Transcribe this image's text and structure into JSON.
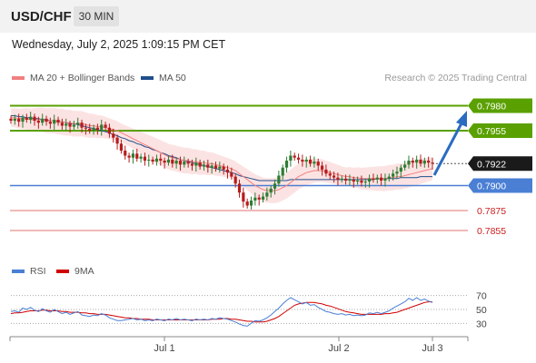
{
  "header": {
    "symbol": "USD/CHF",
    "timeframe": "30 MIN"
  },
  "datetime": "Wednesday, July 2, 2025 1:09:15 PM CET",
  "legend": {
    "ma20_label": "MA 20 + Bollinger Bands",
    "ma20_color": "#f08080",
    "ma50_label": "MA 50",
    "ma50_color": "#1f4e8c"
  },
  "copyright": "Research © 2025 Trading Central",
  "rsi_legend": {
    "rsi_label": "RSI",
    "rsi_color": "#4a7fd4",
    "ma_label": "9MA",
    "ma_color": "#d00000"
  },
  "price_levels": [
    {
      "price": "0.7980",
      "style": "green-box"
    },
    {
      "price": "0.7955",
      "style": "green-box"
    },
    {
      "price": "0.7922",
      "style": "black-box"
    },
    {
      "price": "0.7900",
      "style": "blue-box"
    },
    {
      "price": "0.7875",
      "style": "red-text"
    },
    {
      "price": "0.7855",
      "style": "red-text"
    }
  ],
  "rsi_levels": [
    "70",
    "50",
    "30"
  ],
  "x_axis_labels": [
    "Jul 1",
    "Jul 2",
    "Jul 3"
  ],
  "colors": {
    "green_line": "#5aa000",
    "blue_line": "#4a7fd4",
    "red_line": "#e07070",
    "arrow": "#2a6cc0",
    "candle_up": "#2e7d32",
    "candle_down": "#b71c1c"
  },
  "chart_data": {
    "type": "candlestick",
    "price_ylim": [
      0.7845,
      0.7995
    ],
    "rsi_ylim": [
      20,
      80
    ],
    "close": [
      0.7965,
      0.7967,
      0.7964,
      0.7968,
      0.7966,
      0.7969,
      0.7965,
      0.7963,
      0.7967,
      0.7964,
      0.7962,
      0.7966,
      0.7963,
      0.796,
      0.7962,
      0.7959,
      0.7961,
      0.7963,
      0.7958,
      0.7957,
      0.7955,
      0.7958,
      0.7956,
      0.7961,
      0.7958,
      0.7952,
      0.7948,
      0.7942,
      0.7935,
      0.793,
      0.7928,
      0.7932,
      0.7927,
      0.7929,
      0.7925,
      0.7926,
      0.7924,
      0.7927,
      0.7925,
      0.7923,
      0.7926,
      0.7922,
      0.7925,
      0.7921,
      0.7924,
      0.7922,
      0.792,
      0.7923,
      0.7919,
      0.7921,
      0.7918,
      0.792,
      0.7917,
      0.7919,
      0.7916,
      0.7913,
      0.7909,
      0.7902,
      0.7893,
      0.7884,
      0.788,
      0.7885,
      0.7888,
      0.7886,
      0.7889,
      0.7893,
      0.7897,
      0.7902,
      0.791,
      0.7918,
      0.7925,
      0.793,
      0.7928,
      0.7926,
      0.7924,
      0.7926,
      0.7922,
      0.7924,
      0.792,
      0.7916,
      0.7912,
      0.791,
      0.7908,
      0.7906,
      0.7907,
      0.7905,
      0.7906,
      0.7904,
      0.7905,
      0.7903,
      0.7904,
      0.7907,
      0.7906,
      0.7908,
      0.7905,
      0.7907,
      0.7909,
      0.7912,
      0.7914,
      0.7918,
      0.7921,
      0.7925,
      0.7923,
      0.7926,
      0.7922,
      0.7925,
      0.7923,
      0.7922
    ],
    "rsi": [
      47,
      48,
      46,
      52,
      50,
      53,
      49,
      47,
      51,
      48,
      46,
      50,
      47,
      44,
      46,
      43,
      45,
      47,
      42,
      41,
      40,
      42,
      41,
      44,
      42,
      38,
      36,
      34,
      34,
      35,
      36,
      37,
      35,
      36,
      34,
      35,
      34,
      36,
      35,
      34,
      36,
      35,
      37,
      35,
      36,
      35,
      34,
      36,
      35,
      36,
      35,
      37,
      36,
      38,
      37,
      36,
      34,
      32,
      29,
      27,
      26,
      30,
      34,
      33,
      35,
      38,
      42,
      47,
      52,
      58,
      63,
      67,
      64,
      61,
      58,
      60,
      56,
      57,
      53,
      50,
      47,
      46,
      44,
      43,
      44,
      42,
      43,
      41,
      42,
      41,
      42,
      45,
      44,
      46,
      44,
      46,
      48,
      52,
      55,
      58,
      61,
      66,
      63,
      67,
      63,
      65,
      62,
      60
    ],
    "rsi_ma": [
      44,
      45,
      45,
      46,
      47,
      48,
      48,
      48,
      49,
      49,
      48,
      48,
      48,
      47,
      47,
      46,
      46,
      46,
      45,
      45,
      44,
      44,
      43,
      43,
      43,
      42,
      41,
      40,
      39,
      38,
      38,
      37,
      37,
      36,
      36,
      36,
      35,
      35,
      35,
      35,
      35,
      35,
      35,
      35,
      35,
      35,
      35,
      35,
      35,
      35,
      35,
      36,
      36,
      36,
      37,
      37,
      36,
      36,
      35,
      34,
      33,
      33,
      32,
      32,
      32,
      33,
      35,
      37,
      40,
      44,
      48,
      52,
      56,
      58,
      59,
      60,
      60,
      60,
      59,
      58,
      56,
      55,
      53,
      51,
      49,
      47,
      46,
      45,
      44,
      43,
      43,
      43,
      43,
      43,
      43,
      44,
      44,
      45,
      46,
      48,
      50,
      52,
      54,
      56,
      58,
      60,
      61,
      61
    ],
    "ma20": [
      0.7968,
      0.7968,
      0.7967,
      0.7967,
      0.7967,
      0.7966,
      0.7966,
      0.7966,
      0.7966,
      0.7965,
      0.7965,
      0.7965,
      0.7964,
      0.7964,
      0.7963,
      0.7963,
      0.7962,
      0.7962,
      0.7962,
      0.7961,
      0.796,
      0.796,
      0.7959,
      0.7959,
      0.7958,
      0.7957,
      0.7956,
      0.7955,
      0.7953,
      0.7951,
      0.7949,
      0.7947,
      0.7945,
      0.7943,
      0.7941,
      0.7939,
      0.7937,
      0.7935,
      0.7933,
      0.7931,
      0.7929,
      0.7928,
      0.7927,
      0.7926,
      0.7925,
      0.7925,
      0.7924,
      0.7924,
      0.7923,
      0.7923,
      0.7922,
      0.7922,
      0.7921,
      0.792,
      0.7919,
      0.7918,
      0.7917,
      0.7915,
      0.7912,
      0.7909,
      0.7906,
      0.7903,
      0.79,
      0.7898,
      0.7896,
      0.7895,
      0.7895,
      0.7895,
      0.7896,
      0.7898,
      0.79,
      0.7903,
      0.7906,
      0.7909,
      0.7911,
      0.7913,
      0.7914,
      0.7915,
      0.7915,
      0.7915,
      0.7914,
      0.7913,
      0.7912,
      0.7911,
      0.791,
      0.7909,
      0.7909,
      0.7908,
      0.7908,
      0.7907,
      0.7907,
      0.7907,
      0.7907,
      0.7907,
      0.7907,
      0.7907,
      0.7908,
      0.7908,
      0.7909,
      0.7909,
      0.791,
      0.7911,
      0.7912,
      0.7913,
      0.7914,
      0.7915,
      0.7916,
      0.7917
    ],
    "ma50": [
      0.797,
      0.797,
      0.7969,
      0.7969,
      0.7968,
      0.7968,
      0.7967,
      0.7967,
      0.7966,
      0.7966,
      0.7965,
      0.7965,
      0.7964,
      0.7964,
      0.7963,
      0.7962,
      0.7962,
      0.7961,
      0.796,
      0.7959,
      0.7958,
      0.7957,
      0.7956,
      0.7955,
      0.7954,
      0.7953,
      0.7951,
      0.795,
      0.7948,
      0.7947,
      0.7945,
      0.7944,
      0.7942,
      0.7941,
      0.7939,
      0.7938,
      0.7936,
      0.7935,
      0.7933,
      0.7932,
      0.793,
      0.7929,
      0.7928,
      0.7926,
      0.7925,
      0.7924,
      0.7923,
      0.7922,
      0.7921,
      0.792,
      0.7919,
      0.7918,
      0.7917,
      0.7916,
      0.7915,
      0.7914,
      0.7913,
      0.7912,
      0.791,
      0.7909,
      0.7908,
      0.7907,
      0.7906,
      0.7905,
      0.7905,
      0.7905,
      0.7905,
      0.7905,
      0.7905,
      0.7905,
      0.7905,
      0.7906,
      0.7906,
      0.7906,
      0.7906,
      0.7906,
      0.7906,
      0.7906,
      0.7906,
      0.7906,
      0.7906,
      0.7906,
      0.7906,
      0.7906,
      0.7906,
      0.7906,
      0.7906,
      0.7906,
      0.7906,
      0.7906,
      0.7906,
      0.7906,
      0.7906,
      0.7907,
      0.7907,
      0.7907,
      0.7907,
      0.7907,
      0.7907,
      0.7908,
      0.7908,
      0.7908,
      0.7908,
      0.7908,
      0.7909,
      0.7909,
      0.7909,
      0.7909
    ]
  }
}
